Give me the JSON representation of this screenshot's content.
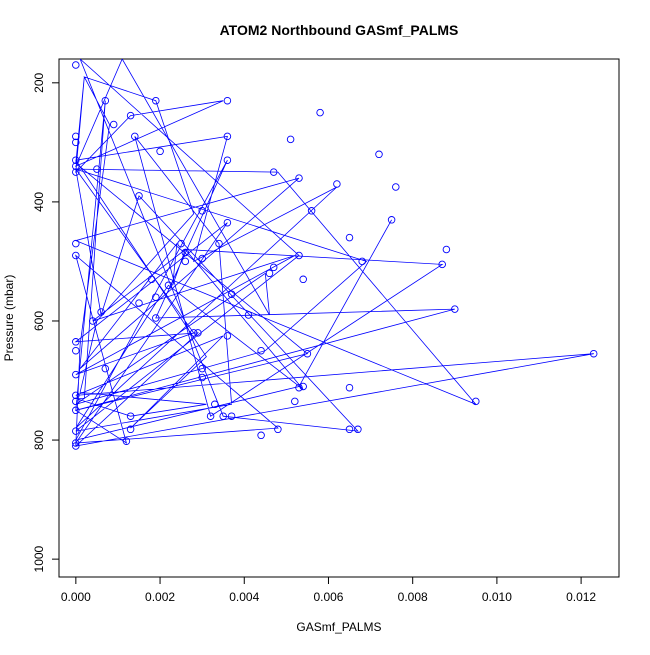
{
  "chart_data": {
    "type": "line",
    "title": "ATOM2 Northbound GASmf_PALMS",
    "xlabel": "GASmf_PALMS",
    "ylabel": "Pressure (mbar)",
    "xlim": [
      -0.0004,
      0.0129
    ],
    "ylim": [
      1030,
      160
    ],
    "y_inverted": true,
    "x_ticks": [
      "0.000",
      "0.002",
      "0.004",
      "0.006",
      "0.008",
      "0.010",
      "0.012"
    ],
    "x_tick_values": [
      0,
      0.002,
      0.004,
      0.006,
      0.008,
      0.01,
      0.012
    ],
    "y_ticks": [
      "200",
      "400",
      "600",
      "800",
      "1000"
    ],
    "y_tick_values": [
      200,
      400,
      600,
      800,
      1000
    ],
    "grid": false,
    "legend": "none",
    "series_color": "#0000ff",
    "marker": "open-circle",
    "series": [
      {
        "x": [
          0,
          0.0001,
          0.0008,
          0.0002,
          0.0019,
          0.0028,
          0.0005,
          0.0001,
          0.0031,
          0.0013,
          0.0,
          0.0002,
          0.0007,
          0.0,
          0.0055,
          0.0,
          0.0002,
          0.0,
          0.0013,
          0.0035,
          0.0,
          0.0011,
          0.0046,
          0.0045,
          0.0,
          0.0045,
          0.0069,
          0.0,
          0.0048,
          0.0095,
          0.0,
          0.0053,
          0.0001,
          0.0024,
          0.0023,
          0.0026,
          0.0004,
          0.0052,
          0.0,
          0.0028,
          0.0,
          0.0006,
          0.0015,
          0.0067,
          0.0035,
          0.0001,
          0.0053,
          0.0,
          0.0037,
          0.0034,
          0.0014,
          0.0032,
          0.0087,
          0.0026,
          0.0054,
          0.0022,
          0.0019,
          0.0,
          0.0062,
          0.0028,
          0.0036,
          0.0,
          0.0031,
          0.0013,
          0.0035,
          0.0,
          0.0123,
          0.0,
          0.0029,
          0.0,
          0.0036,
          0.0,
          0.0048,
          0.0,
          0.0012,
          0.0,
          0.009,
          0.0019,
          0.0036,
          0.0,
          0.0053,
          0.0075
        ],
        "y": [
          810,
          640,
          270,
          190,
          230,
          420,
          600,
          720,
          740,
          760,
          730,
          730,
          230,
          750,
          655,
          335,
          190,
          350,
          255,
          230,
          340,
          160,
          590,
          520,
          740,
          650,
          500,
          345,
          350,
          740,
          465,
          360,
          680,
          470,
          540,
          480,
          600,
          490,
          690,
          620,
          345,
          590,
          390,
          785,
          760,
          160,
          490,
          785,
          740,
          470,
          290,
          760,
          505,
          480,
          715,
          540,
          570,
          780,
          375,
          500,
          290,
          330,
          660,
          780,
          625,
          725,
          655,
          810,
          620,
          635,
          435,
          805,
          780,
          490,
          805,
          750,
          580,
          595,
          330,
          800,
          710,
          430
        ]
      }
    ],
    "scattered_points": [
      {
        "x": 0.0,
        "y": 170
      },
      {
        "x": 0.0,
        "y": 290
      },
      {
        "x": 0.0,
        "y": 300
      },
      {
        "x": 0.0,
        "y": 330
      },
      {
        "x": 0.0,
        "y": 340
      },
      {
        "x": 0.0,
        "y": 350
      },
      {
        "x": 0.0,
        "y": 470
      },
      {
        "x": 0.0,
        "y": 490
      },
      {
        "x": 0.0,
        "y": 635
      },
      {
        "x": 0.0,
        "y": 650
      },
      {
        "x": 0.0,
        "y": 690
      },
      {
        "x": 0.0,
        "y": 725
      },
      {
        "x": 0.0,
        "y": 735
      },
      {
        "x": 0.0,
        "y": 750
      },
      {
        "x": 0.0,
        "y": 785
      },
      {
        "x": 0.0,
        "y": 805
      },
      {
        "x": 0.0,
        "y": 810
      },
      {
        "x": 0.0007,
        "y": 230
      },
      {
        "x": 0.0009,
        "y": 270
      },
      {
        "x": 0.0013,
        "y": 255
      },
      {
        "x": 0.0014,
        "y": 290
      },
      {
        "x": 0.0019,
        "y": 230
      },
      {
        "x": 0.002,
        "y": 315
      },
      {
        "x": 0.0005,
        "y": 345
      },
      {
        "x": 0.0015,
        "y": 390
      },
      {
        "x": 0.0036,
        "y": 230
      },
      {
        "x": 0.0036,
        "y": 290
      },
      {
        "x": 0.0036,
        "y": 330
      },
      {
        "x": 0.0058,
        "y": 250
      },
      {
        "x": 0.0051,
        "y": 295
      },
      {
        "x": 0.0072,
        "y": 320
      },
      {
        "x": 0.0047,
        "y": 350
      },
      {
        "x": 0.0053,
        "y": 360
      },
      {
        "x": 0.0062,
        "y": 370
      },
      {
        "x": 0.0076,
        "y": 375
      },
      {
        "x": 0.003,
        "y": 415
      },
      {
        "x": 0.0056,
        "y": 415
      },
      {
        "x": 0.0075,
        "y": 430
      },
      {
        "x": 0.0036,
        "y": 435
      },
      {
        "x": 0.0065,
        "y": 460
      },
      {
        "x": 0.0034,
        "y": 470
      },
      {
        "x": 0.0025,
        "y": 470
      },
      {
        "x": 0.0088,
        "y": 480
      },
      {
        "x": 0.0026,
        "y": 485
      },
      {
        "x": 0.0053,
        "y": 490
      },
      {
        "x": 0.003,
        "y": 495
      },
      {
        "x": 0.0026,
        "y": 500
      },
      {
        "x": 0.0068,
        "y": 500
      },
      {
        "x": 0.0087,
        "y": 505
      },
      {
        "x": 0.0047,
        "y": 510
      },
      {
        "x": 0.0046,
        "y": 520
      },
      {
        "x": 0.0018,
        "y": 530
      },
      {
        "x": 0.0054,
        "y": 530
      },
      {
        "x": 0.0022,
        "y": 540
      },
      {
        "x": 0.0037,
        "y": 555
      },
      {
        "x": 0.0019,
        "y": 560
      },
      {
        "x": 0.0015,
        "y": 570
      },
      {
        "x": 0.009,
        "y": 580
      },
      {
        "x": 0.0006,
        "y": 585
      },
      {
        "x": 0.0041,
        "y": 590
      },
      {
        "x": 0.0019,
        "y": 595
      },
      {
        "x": 0.0004,
        "y": 600
      },
      {
        "x": 0.0028,
        "y": 620
      },
      {
        "x": 0.0029,
        "y": 620
      },
      {
        "x": 0.0036,
        "y": 625
      },
      {
        "x": 0.0044,
        "y": 650
      },
      {
        "x": 0.0055,
        "y": 655
      },
      {
        "x": 0.0123,
        "y": 655
      },
      {
        "x": 0.003,
        "y": 680
      },
      {
        "x": 0.0007,
        "y": 680
      },
      {
        "x": 0.003,
        "y": 695
      },
      {
        "x": 0.0054,
        "y": 710
      },
      {
        "x": 0.0053,
        "y": 712
      },
      {
        "x": 0.0065,
        "y": 712
      },
      {
        "x": 0.0052,
        "y": 735
      },
      {
        "x": 0.0095,
        "y": 735
      },
      {
        "x": 0.0033,
        "y": 740
      },
      {
        "x": 0.0013,
        "y": 760
      },
      {
        "x": 0.0032,
        "y": 760
      },
      {
        "x": 0.0035,
        "y": 760
      },
      {
        "x": 0.0037,
        "y": 760
      },
      {
        "x": 0.0013,
        "y": 782
      },
      {
        "x": 0.0048,
        "y": 782
      },
      {
        "x": 0.0065,
        "y": 782
      },
      {
        "x": 0.0067,
        "y": 782
      },
      {
        "x": 0.0044,
        "y": 792
      },
      {
        "x": 0.0012,
        "y": 802
      }
    ]
  }
}
